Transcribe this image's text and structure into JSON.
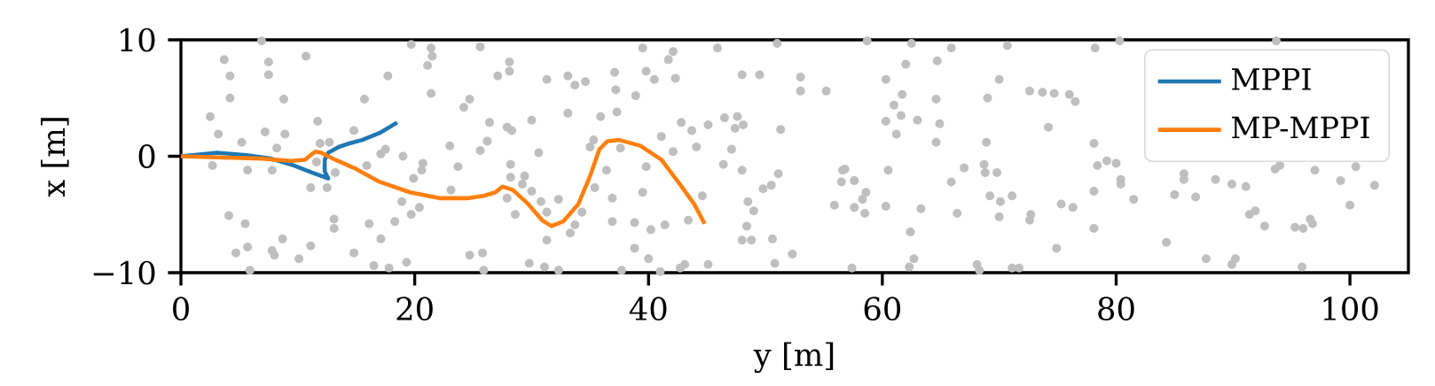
{
  "chart_data": {
    "type": "scatter",
    "xlabel": "y [m]",
    "ylabel": "x [m]",
    "xlim": [
      0,
      105
    ],
    "ylim": [
      -10,
      10
    ],
    "xticks": [
      0,
      20,
      40,
      60,
      80,
      100
    ],
    "yticks": [
      {
        "value": -10,
        "label": "−10"
      },
      0,
      10
    ],
    "legend": "top right",
    "series": [
      {
        "type": "scatter",
        "color": "#bfbfbf",
        "marker": "circle",
        "x": [
          6.9,
          3.7,
          7.5,
          4.2,
          7.5,
          10.7,
          4.2,
          8.8,
          2.5,
          3.2,
          7.2,
          8.9,
          5.2,
          8.2,
          11.7,
          11.9,
          12.7,
          2.7,
          5.7,
          7.8,
          11.6,
          13.2,
          11.1,
          12.5,
          4.1,
          5.5,
          13.1,
          13.1,
          8.7,
          4.7,
          5.7,
          7.8,
          8.0,
          10.1,
          11.1,
          5.9,
          14.8,
          16.5,
          17.8,
          19.3,
          17.1,
          16.1,
          18.3,
          19.7,
          20.4,
          18.9,
          23.1,
          19.9,
          20.6,
          20.7,
          15.9,
          17.1,
          17.5,
          19.0,
          14.8,
          15.7,
          17.7,
          19.7,
          21.4,
          21.5,
          21.1,
          21.4,
          24.7,
          24.2,
          26.4,
          26.2,
          25.6,
          23.0,
          23.7,
          25.6,
          24.7,
          25.8,
          25.9,
          28.1,
          28.1,
          27.1,
          31.3,
          33.1,
          33.7,
          34.6,
          37.1,
          37.2,
          39.5,
          39.8,
          40.5,
          41.7,
          42.1,
          42.3,
          38.9,
          45.9,
          48.0,
          49.5,
          51.0,
          53.0,
          53.0,
          33.1,
          35.9,
          37.3,
          30.0,
          27.9,
          28.3,
          35.3,
          35.0,
          37.6,
          30.6,
          28.2,
          28.2,
          29.4,
          29.2,
          30.0,
          27.9,
          28.6,
          30.8,
          31.3,
          32.3,
          31.3,
          33.7,
          33.3,
          34.3,
          35.4,
          36.4,
          36.9,
          36.9,
          38.8,
          39.5,
          39.8,
          40.2,
          41.4,
          41.1,
          42.1,
          42.8,
          43.7,
          44.1,
          45.1,
          44.6,
          43.4,
          38.8,
          40.0,
          29.8,
          31.1,
          32.3,
          37.7,
          41.0,
          42.7,
          43.1,
          45.1,
          46.5,
          47.6,
          48.1,
          47.4,
          47.1,
          46.4,
          48.0,
          51.1,
          50.5,
          49.8,
          48.5,
          49.0,
          48.4,
          48.0,
          48.8,
          50.6,
          52.3,
          50.8,
          51.3,
          58.7,
          62.5,
          65.9,
          70.7,
          78.2,
          62.0,
          64.7,
          60.3,
          70.0,
          55.2,
          61.7,
          61.0,
          64.6,
          69.0,
          60.3,
          61.6,
          63.0,
          64.9,
          61.2,
          64.6,
          68.9,
          72.6,
          73.7,
          74.7,
          76.0,
          76.5,
          74.2,
          78.1,
          78.4,
          79.2,
          56.8,
          56.6,
          56.5,
          57.6,
          58.6,
          58.3,
          55.9,
          57.6,
          58.5,
          60.3,
          60.5,
          63.3,
          65.9,
          67.0,
          68.7,
          68.8,
          69.8,
          69.2,
          70.1,
          71.1,
          66.4,
          70.0,
          72.7,
          72.6,
          75.3,
          76.3,
          78.1,
          78.1,
          62.4,
          74.9,
          62.7,
          62.3,
          57.4,
          68.1,
          68.3,
          71.1,
          71.7,
          80.3,
          93.7,
          80.0,
          80.4,
          80.4,
          81.5,
          85.8,
          85.8,
          85.0,
          86.8,
          88.5,
          89.9,
          91.1,
          93.6,
          94.0,
          97.0,
          99.2,
          100.5,
          102.1,
          100.0,
          91.4,
          91.9,
          92.7,
          95.3,
          96.0,
          96.6,
          96.8,
          84.3,
          87.7,
          90.2,
          89.9,
          95.9
        ],
        "values": [
          9.9,
          8.3,
          8.1,
          6.9,
          7.0,
          8.6,
          5.0,
          4.9,
          3.4,
          1.9,
          2.1,
          1.9,
          1.2,
          0.7,
          3.0,
          1.1,
          1.2,
          -0.8,
          -1.2,
          -1.2,
          -0.5,
          -1.4,
          -2.7,
          -2.7,
          -5.1,
          -5.8,
          -5.4,
          -6.2,
          -7.1,
          -8.3,
          -7.8,
          -8.1,
          -8.5,
          -8.8,
          -7.7,
          -9.8,
          -8.3,
          -9.4,
          -9.6,
          -9.1,
          -7.1,
          -5.8,
          -5.6,
          -5.0,
          -4.4,
          -3.9,
          -2.9,
          -1.9,
          -1.2,
          -0.6,
          -0.8,
          0.2,
          0.6,
          0.0,
          2.2,
          4.9,
          6.9,
          9.6,
          9.3,
          8.6,
          7.8,
          5.4,
          4.9,
          4.2,
          2.9,
          1.3,
          0.5,
          0.9,
          -0.9,
          9.4,
          -8.5,
          -8.3,
          -9.8,
          8.1,
          7.3,
          6.9,
          6.6,
          6.9,
          6.1,
          6.4,
          7.2,
          5.7,
          9.3,
          7.3,
          6.6,
          8.3,
          9.0,
          6.7,
          5.2,
          9.3,
          7.0,
          7.0,
          9.7,
          6.8,
          5.6,
          3.7,
          3.4,
          3.8,
          3.1,
          2.5,
          2.2,
          1.4,
          0.8,
          0.7,
          0.3,
          -0.7,
          -1.8,
          -1.7,
          -2.4,
          -3.0,
          -3.6,
          -5.0,
          -3.9,
          -4.8,
          -3.7,
          -7.2,
          -5.9,
          -6.6,
          -4.8,
          -2.7,
          -1.2,
          -3.6,
          -5.6,
          -5.7,
          -3.1,
          -0.9,
          -6.3,
          -5.9,
          1.7,
          0.4,
          2.9,
          2.2,
          0.8,
          2.7,
          -3.4,
          -5.5,
          -7.9,
          -8.8,
          -9.2,
          -9.5,
          -9.8,
          -9.8,
          -9.9,
          -9.6,
          -9.3,
          -9.3,
          3.3,
          3.4,
          2.7,
          2.4,
          0.6,
          -0.7,
          -1.2,
          -1.5,
          -2.5,
          -2.8,
          -3.9,
          -4.7,
          -6.0,
          -7.2,
          -7.2,
          -7.1,
          -8.4,
          -9.2,
          2.3,
          9.9,
          9.7,
          9.3,
          9.5,
          9.3,
          7.9,
          8.2,
          6.6,
          6.6,
          5.6,
          5.3,
          4.4,
          4.9,
          5.0,
          3.0,
          3.5,
          3.1,
          2.8,
          1.9,
          1.2,
          1.2,
          5.6,
          5.5,
          5.4,
          5.3,
          4.7,
          2.5,
          1.1,
          -0.8,
          -0.4,
          -1.1,
          -1.2,
          -2.2,
          -2.1,
          -3.1,
          -3.7,
          -4.2,
          -4.4,
          -4.9,
          -4.3,
          -1.2,
          -4.5,
          -2.2,
          -1.0,
          -0.7,
          -1.4,
          -1.4,
          -3.4,
          -3.9,
          -3.4,
          -4.9,
          -5.2,
          -5.0,
          -5.5,
          -4.1,
          -4.4,
          -3.0,
          -6.2,
          -6.5,
          -7.9,
          -8.8,
          -9.5,
          -9.6,
          -9.3,
          -9.8,
          -9.6,
          -9.6,
          9.9,
          9.9,
          -0.6,
          -2.0,
          -2.4,
          -3.7,
          -1.5,
          -2.0,
          -3.3,
          -3.5,
          -2.0,
          -2.4,
          -2.6,
          -1.1,
          -0.8,
          -1.2,
          -2.1,
          -0.9,
          -2.5,
          -4.2,
          -5.0,
          -4.7,
          -6.0,
          -6.1,
          -6.2,
          -5.4,
          -5.8,
          -7.4,
          -8.8,
          -8.8,
          -9.3,
          -9.5
        ]
      },
      {
        "type": "line",
        "name": "MPPI",
        "color": "#1f77b4",
        "x": [
          0,
          3.1,
          5.6,
          7.7,
          9.4,
          11.2,
          12.6,
          12.3,
          12.3,
          12.6,
          13.5,
          14.4,
          15.5,
          17.0,
          18.5
        ],
        "values": [
          0,
          0.3,
          0.1,
          -0.2,
          -0.7,
          -1.4,
          -1.9,
          -1.3,
          -0.3,
          0.3,
          0.8,
          1.1,
          1.4,
          2.0,
          2.9
        ]
      },
      {
        "type": "line",
        "name": "MP-MPPI",
        "color": "#ff7f0e",
        "x": [
          0,
          3.1,
          6.9,
          9.4,
          10.6,
          11.1,
          11.5,
          12.0,
          13.2,
          15.0,
          17.0,
          19.6,
          22.1,
          24.6,
          25.9,
          26.9,
          27.5,
          28.4,
          29.7,
          30.9,
          31.7,
          32.7,
          34.0,
          35.0,
          35.8,
          36.5,
          37.5,
          39.3,
          41.1,
          42.6,
          43.9,
          44.8
        ],
        "values": [
          0,
          -0.1,
          -0.2,
          -0.4,
          -0.3,
          0.1,
          0.4,
          0.3,
          -0.3,
          -1.1,
          -2.2,
          -3.1,
          -3.6,
          -3.6,
          -3.4,
          -3.1,
          -2.6,
          -2.9,
          -4.1,
          -5.5,
          -6.0,
          -5.6,
          -4.1,
          -1.7,
          0.6,
          1.3,
          1.4,
          0.9,
          -0.3,
          -2.3,
          -4.1,
          -5.8
        ]
      }
    ]
  }
}
